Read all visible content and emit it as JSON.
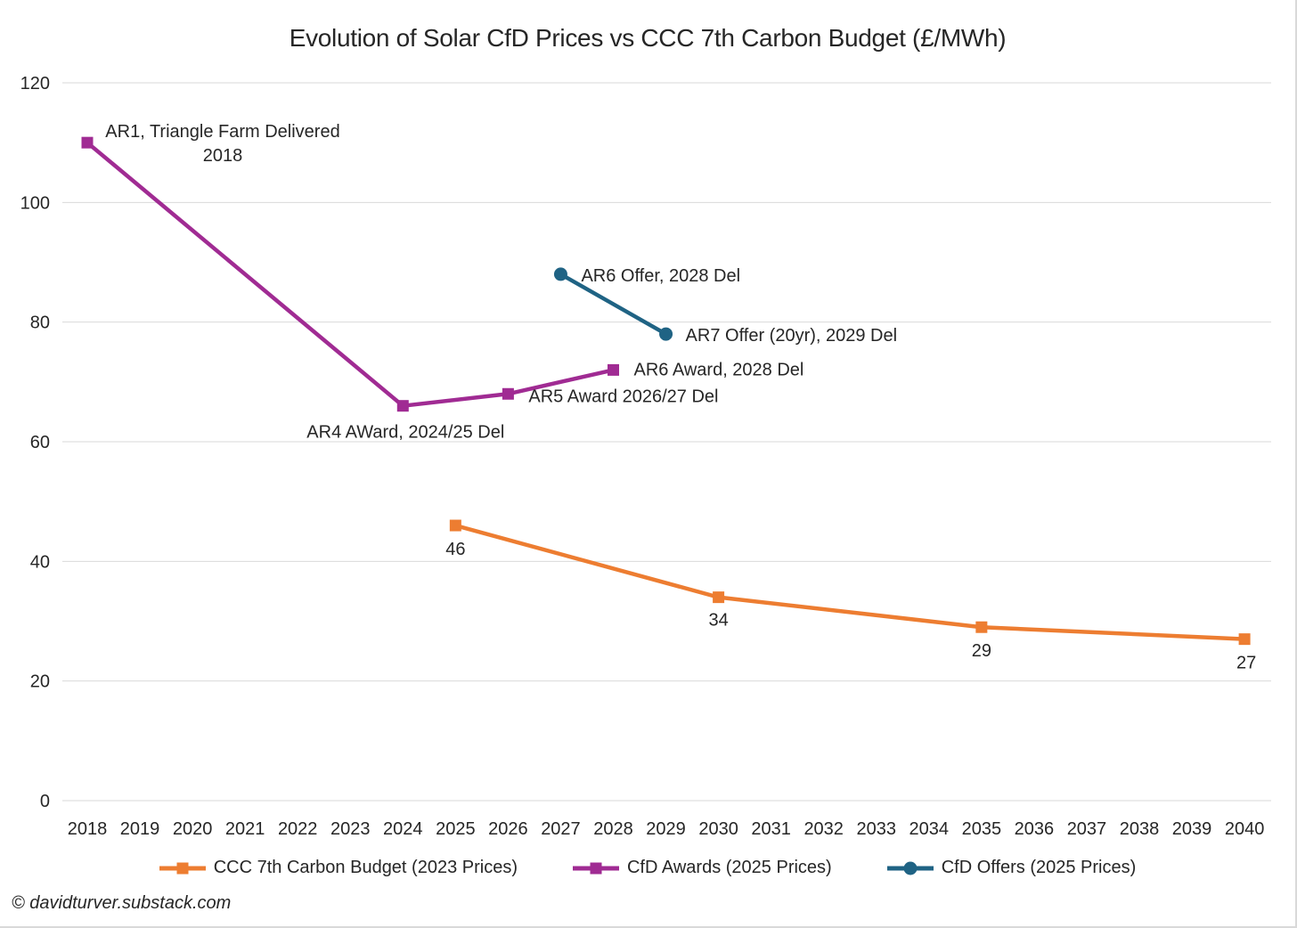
{
  "footer": {
    "text": "© davidturver.substack.com"
  },
  "chart_data": {
    "type": "line",
    "title": "Evolution of Solar CfD Prices vs CCC 7th Carbon Budget (£/MWh)",
    "xlabel": "",
    "ylabel": "",
    "ylim": [
      0,
      120
    ],
    "y_ticks": [
      0,
      20,
      40,
      60,
      80,
      100,
      120
    ],
    "x_ticks": [
      2018,
      2019,
      2020,
      2021,
      2022,
      2023,
      2024,
      2025,
      2026,
      2027,
      2028,
      2029,
      2030,
      2031,
      2032,
      2033,
      2034,
      2035,
      2036,
      2037,
      2038,
      2039,
      2040
    ],
    "grid": "horizontal",
    "gridline_color": "#d9d9d9",
    "text_color": "#262626",
    "legend_position": "bottom",
    "series": [
      {
        "name": "CCC 7th Carbon Budget (2023 Prices)",
        "color": "#ED7D31",
        "marker": "square",
        "points": [
          {
            "x": 2025,
            "y": 46,
            "label": "46",
            "label_anchor": "middle",
            "label_dx": 0,
            "label_dy": 33
          },
          {
            "x": 2030,
            "y": 34,
            "label": "34",
            "label_anchor": "middle",
            "label_dx": 0,
            "label_dy": 32
          },
          {
            "x": 2035,
            "y": 29,
            "label": "29",
            "label_anchor": "middle",
            "label_dx": 0,
            "label_dy": 33
          },
          {
            "x": 2040,
            "y": 27,
            "label": "27",
            "label_anchor": "middle",
            "label_dx": 2,
            "label_dy": 33
          }
        ]
      },
      {
        "name": "CfD Awards (2025 Prices)",
        "color": "#A02B93",
        "marker": "square",
        "points": [
          {
            "x": 2018,
            "y": 110,
            "label": "AR1, Triangle Farm Delivered\n2018",
            "label_anchor": "middle",
            "label_dx": 152,
            "label_dy": -6
          },
          {
            "x": 2024,
            "y": 66,
            "label": "AR4 AWard, 2024/25 Del",
            "label_anchor": "middle",
            "label_dx": 3,
            "label_dy": 36
          },
          {
            "x": 2026,
            "y": 68,
            "label": "AR5 Award 2026/27 Del",
            "label_anchor": "start",
            "label_dx": 23,
            "label_dy": 9
          },
          {
            "x": 2028,
            "y": 72,
            "label": "AR6 Award, 2028 Del",
            "label_anchor": "start",
            "label_dx": 23,
            "label_dy": 6
          }
        ]
      },
      {
        "name": "CfD Offers (2025 Prices)",
        "color": "#1F6384",
        "marker": "circle",
        "points": [
          {
            "x": 2027,
            "y": 88,
            "label": "AR6 Offer, 2028 Del",
            "label_anchor": "start",
            "label_dx": 23,
            "label_dy": 8
          },
          {
            "x": 2029,
            "y": 78,
            "label": "AR7 Offer (20yr), 2029 Del",
            "label_anchor": "start",
            "label_dx": 22,
            "label_dy": 8
          }
        ]
      }
    ]
  }
}
